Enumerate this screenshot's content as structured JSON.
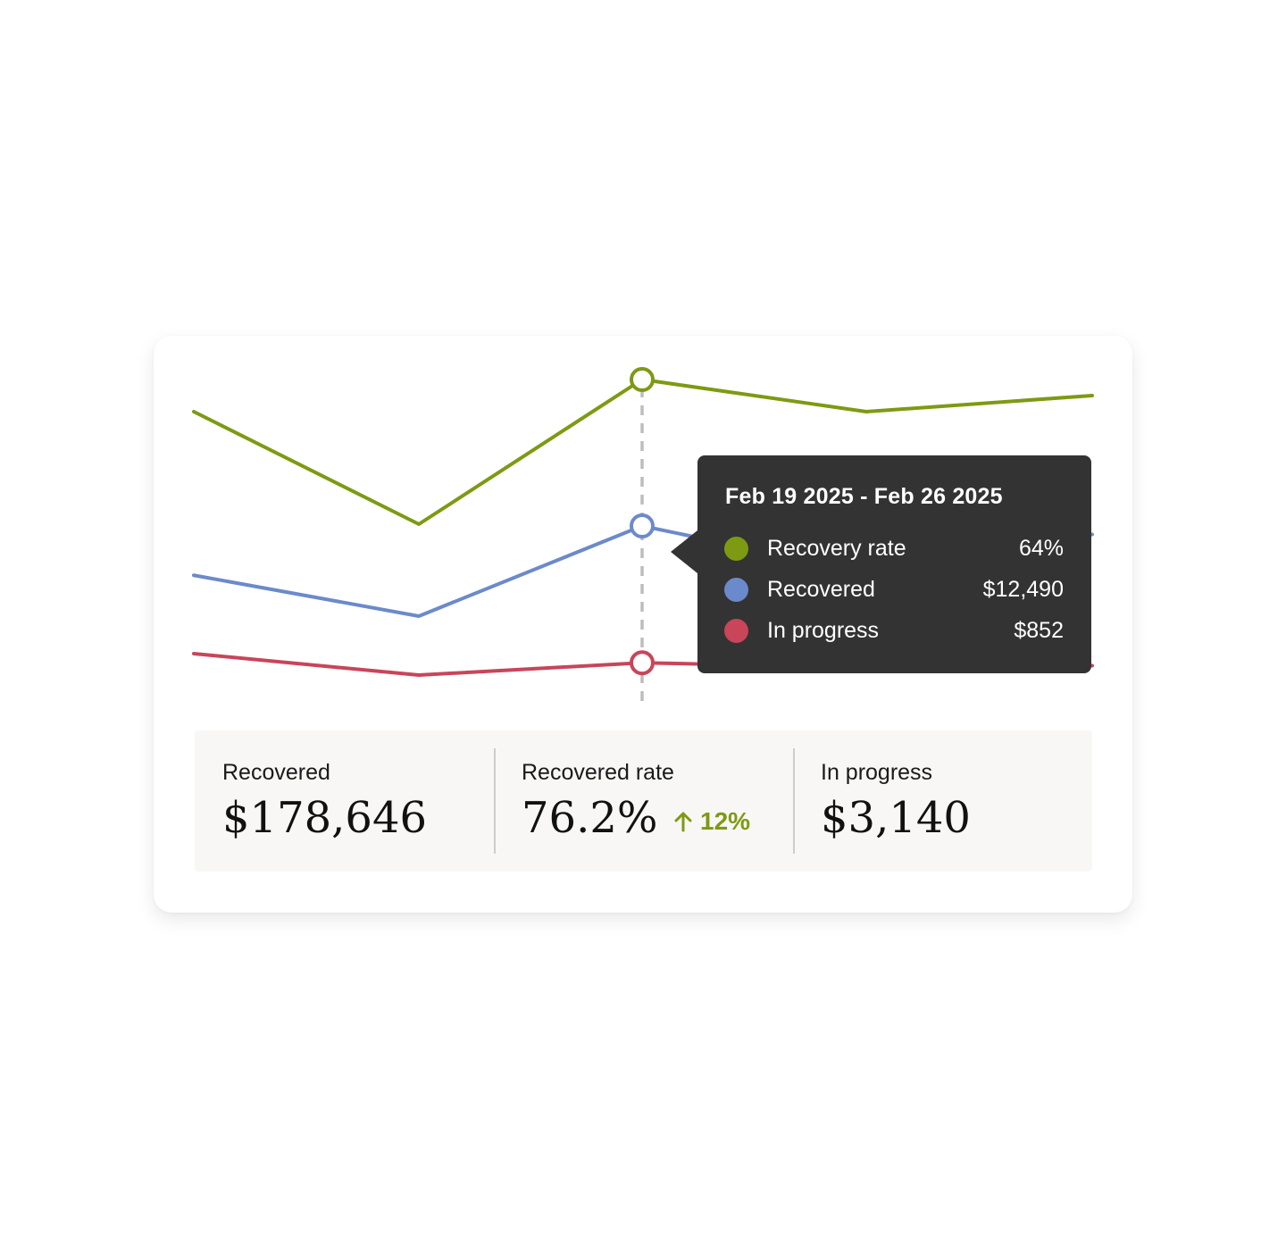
{
  "chart_data": {
    "type": "line",
    "x": [
      "",
      "",
      "Feb 19 2025 - Feb 26 2025",
      "",
      ""
    ],
    "series": [
      {
        "name": "Recovery rate",
        "color": "#7d9a12",
        "values": [
          62,
          55,
          64,
          62,
          63
        ]
      },
      {
        "name": "Recovered",
        "color": "#6b8acb",
        "values": [
          10800,
          9400,
          12490,
          10900,
          12200
        ]
      },
      {
        "name": "In progress",
        "color": "#c8455a",
        "values": [
          920,
          760,
          852,
          815,
          830
        ]
      }
    ],
    "highlight_index": 2,
    "grid": false,
    "legend": "none"
  },
  "tooltip": {
    "title": "Feb 19 2025 - Feb 26 2025",
    "rows": [
      {
        "label": "Recovery rate",
        "value": "64%",
        "color": "#7d9a12"
      },
      {
        "label": "Recovered",
        "value": "$12,490",
        "color": "#6b8acb"
      },
      {
        "label": "In progress",
        "value": "$852",
        "color": "#c8455a"
      }
    ]
  },
  "stats": {
    "recovered": {
      "label": "Recovered",
      "value": "$178,646"
    },
    "rate": {
      "label": "Recovered rate",
      "value": "76.2%",
      "change": "12%",
      "change_direction": "up",
      "change_color": "#7d9a12"
    },
    "in_progress": {
      "label": "In progress",
      "value": "$3,140"
    }
  }
}
